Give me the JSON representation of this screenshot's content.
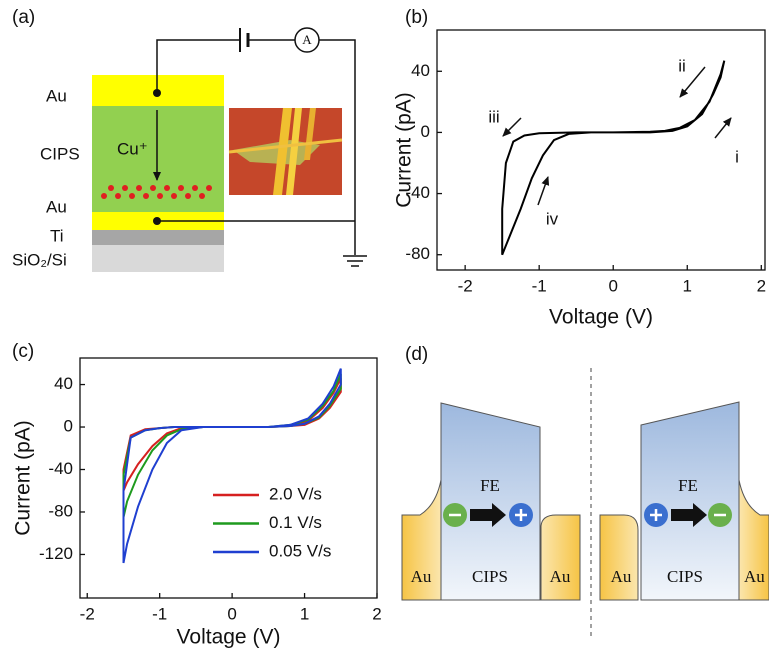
{
  "schematic": {
    "label": "(a)",
    "layers": [
      "Au",
      "CIPS",
      "Au",
      "Ti",
      "SiO₂/Si"
    ],
    "ion": "Cu⁺",
    "meter": "A"
  },
  "chart_data": [
    {
      "type": "line",
      "label": "(b)",
      "xlabel": "Voltage (V)",
      "ylabel": "Current (pA)",
      "xlim": [
        -2.38,
        2.05
      ],
      "ylim": [
        -90,
        67
      ],
      "xticks": [
        -2,
        -1,
        0,
        1,
        2
      ],
      "yticks": [
        -80,
        -40,
        0,
        40
      ],
      "x": [
        0,
        0.5,
        0.7,
        0.9,
        1.1,
        1.3,
        1.45,
        1.5,
        1.45,
        1.35,
        1.2,
        1.0,
        0.8,
        0.5,
        0,
        -0.5,
        -1.0,
        -1.2,
        -1.35,
        -1.45,
        -1.5,
        -1.5,
        -1.4,
        -1.25,
        -1.1,
        -0.95,
        -0.8,
        -0.6,
        -0.3,
        0
      ],
      "series": [
        {
          "color": "#000000",
          "values": [
            0,
            0.5,
            1,
            3,
            8,
            20,
            38,
            47,
            36,
            25,
            12,
            4,
            1,
            0,
            0,
            0,
            -0.5,
            -2,
            -6,
            -20,
            -50,
            -80,
            -68,
            -50,
            -30,
            -15,
            -5,
            -1,
            0,
            0
          ]
        }
      ],
      "annotations": [
        "i",
        "ii",
        "iii",
        "iv"
      ]
    },
    {
      "type": "line",
      "label": "(c)",
      "xlabel": "Voltage (V)",
      "ylabel": "Current (pA)",
      "xlim": [
        -2.1,
        2.0
      ],
      "ylim": [
        -161,
        65
      ],
      "xticks": [
        -2,
        -1,
        0,
        1,
        2
      ],
      "yticks": [
        -120,
        -80,
        -40,
        0,
        40
      ],
      "x": [
        0,
        0.5,
        0.8,
        1.0,
        1.2,
        1.35,
        1.5,
        1.5,
        1.4,
        1.25,
        1.05,
        0.8,
        0.5,
        0,
        -0.5,
        -0.8,
        -1.0,
        -1.2,
        -1.4,
        -1.5,
        -1.5,
        -1.45,
        -1.3,
        -1.1,
        -0.9,
        -0.7,
        -0.4,
        0
      ],
      "series": [
        {
          "name": "2.0 V/s",
          "color": "#d62020",
          "values": [
            0,
            0,
            1,
            2,
            8,
            18,
            33,
            46,
            32,
            18,
            6,
            1,
            0,
            0,
            0,
            0,
            -1,
            -2,
            -8,
            -40,
            -60,
            -52,
            -35,
            -18,
            -6,
            -1,
            0,
            0
          ]
        },
        {
          "name": "0.1 V/s",
          "color": "#1e9a1e",
          "values": [
            0,
            0,
            1,
            3,
            9,
            20,
            36,
            50,
            34,
            20,
            7,
            2,
            0,
            0,
            0,
            0,
            -1,
            -3,
            -10,
            -45,
            -85,
            -70,
            -45,
            -22,
            -8,
            -2,
            0,
            0
          ]
        },
        {
          "name": "0.05 V/s",
          "color": "#1f3fd0",
          "values": [
            0,
            0,
            1,
            3,
            10,
            22,
            40,
            55,
            38,
            22,
            8,
            2,
            0,
            0,
            0,
            0,
            -1,
            -3,
            -10,
            -60,
            -128,
            -110,
            -75,
            -40,
            -15,
            -3,
            0,
            0
          ]
        }
      ]
    }
  ],
  "band_diagram": {
    "label": "(d)",
    "left": {
      "labels": [
        "Au",
        "CIPS",
        "Au"
      ],
      "fe": "FE"
    },
    "right": {
      "labels": [
        "Au",
        "CIPS",
        "Au"
      ],
      "fe": "FE"
    }
  }
}
